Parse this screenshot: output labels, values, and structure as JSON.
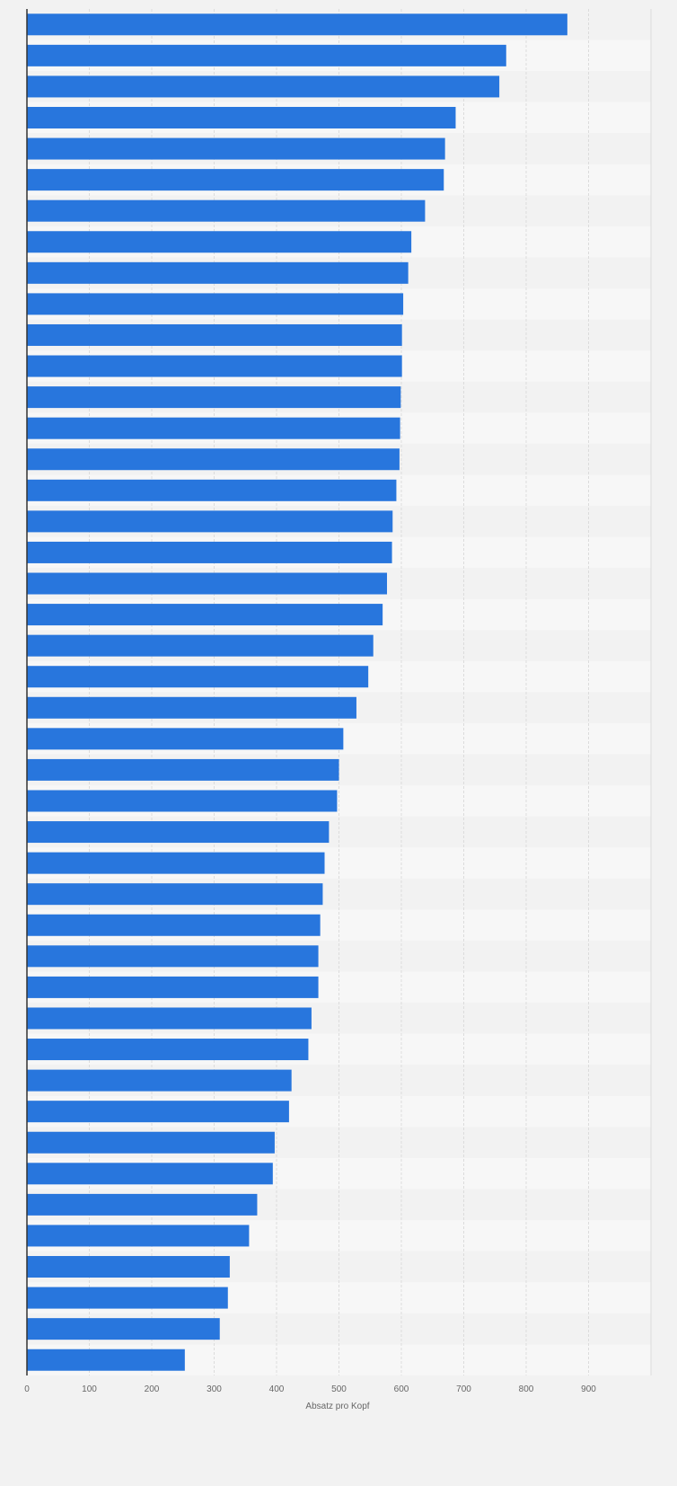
{
  "chart_data": {
    "type": "bar",
    "orientation": "horizontal",
    "title": "",
    "xlabel": "Absatz pro Kopf",
    "ylabel": "",
    "xlim": [
      0,
      1000
    ],
    "x_ticks": [
      0,
      100,
      200,
      300,
      400,
      500,
      600,
      700,
      800,
      900
    ],
    "grid": true,
    "bar_color": "#2876dd",
    "row_colors": [
      "#f2f2f2",
      "#f7f7f7"
    ],
    "values": [
      866,
      768,
      757,
      687,
      670,
      668,
      638,
      616,
      611,
      603,
      601,
      601,
      599,
      598,
      597,
      592,
      586,
      585,
      577,
      570,
      555,
      547,
      528,
      507,
      500,
      497,
      484,
      477,
      474,
      470,
      467,
      467,
      456,
      451,
      424,
      420,
      397,
      394,
      369,
      356,
      325,
      322,
      309,
      253
    ]
  }
}
